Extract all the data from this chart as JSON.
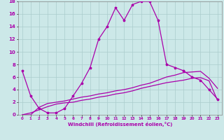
{
  "xlabel": "Windchill (Refroidissement éolien,°C)",
  "bg_color": "#cce8e8",
  "grid_color": "#aacccc",
  "line_color": "#aa00aa",
  "xlim": [
    -0.5,
    23.5
  ],
  "ylim": [
    0,
    18
  ],
  "xticks": [
    0,
    1,
    2,
    3,
    4,
    5,
    6,
    7,
    8,
    9,
    10,
    11,
    12,
    13,
    14,
    15,
    16,
    17,
    18,
    19,
    20,
    21,
    22,
    23
  ],
  "yticks": [
    0,
    2,
    4,
    6,
    8,
    10,
    12,
    14,
    16,
    18
  ],
  "curve1_x": [
    0,
    1,
    2,
    3,
    4,
    5,
    6,
    7,
    8,
    9,
    10,
    11,
    12,
    13,
    14,
    15,
    16,
    17,
    18,
    19,
    20,
    21,
    22,
    23
  ],
  "curve1_y": [
    7,
    3,
    1,
    0.3,
    0.3,
    1,
    3,
    5,
    7.5,
    12,
    14,
    17,
    15,
    17.5,
    18,
    18,
    15,
    8,
    7.5,
    7,
    6,
    5.5,
    4,
    2.5
  ],
  "curve2_x": [
    0,
    1,
    2,
    3,
    4,
    5,
    6,
    7,
    8,
    9,
    10,
    11,
    12,
    13,
    14,
    15,
    16,
    17,
    18,
    19,
    20,
    21,
    22,
    23
  ],
  "curve2_y": [
    0,
    0,
    1.2,
    1.8,
    2.0,
    2.2,
    2.5,
    2.8,
    3.0,
    3.3,
    3.5,
    3.8,
    4.0,
    4.3,
    4.7,
    5.0,
    5.5,
    6.0,
    6.3,
    6.7,
    6.8,
    6.9,
    5.8,
    4.2
  ],
  "curve3_x": [
    0,
    1,
    2,
    3,
    4,
    5,
    6,
    7,
    8,
    9,
    10,
    11,
    12,
    13,
    14,
    15,
    16,
    17,
    18,
    19,
    20,
    21,
    22,
    23
  ],
  "curve3_y": [
    0,
    0.3,
    0.8,
    1.3,
    1.7,
    1.9,
    2.0,
    2.3,
    2.5,
    2.8,
    3.0,
    3.3,
    3.5,
    3.8,
    4.2,
    4.5,
    4.8,
    5.1,
    5.3,
    5.5,
    5.8,
    5.9,
    5.4,
    2.3
  ]
}
